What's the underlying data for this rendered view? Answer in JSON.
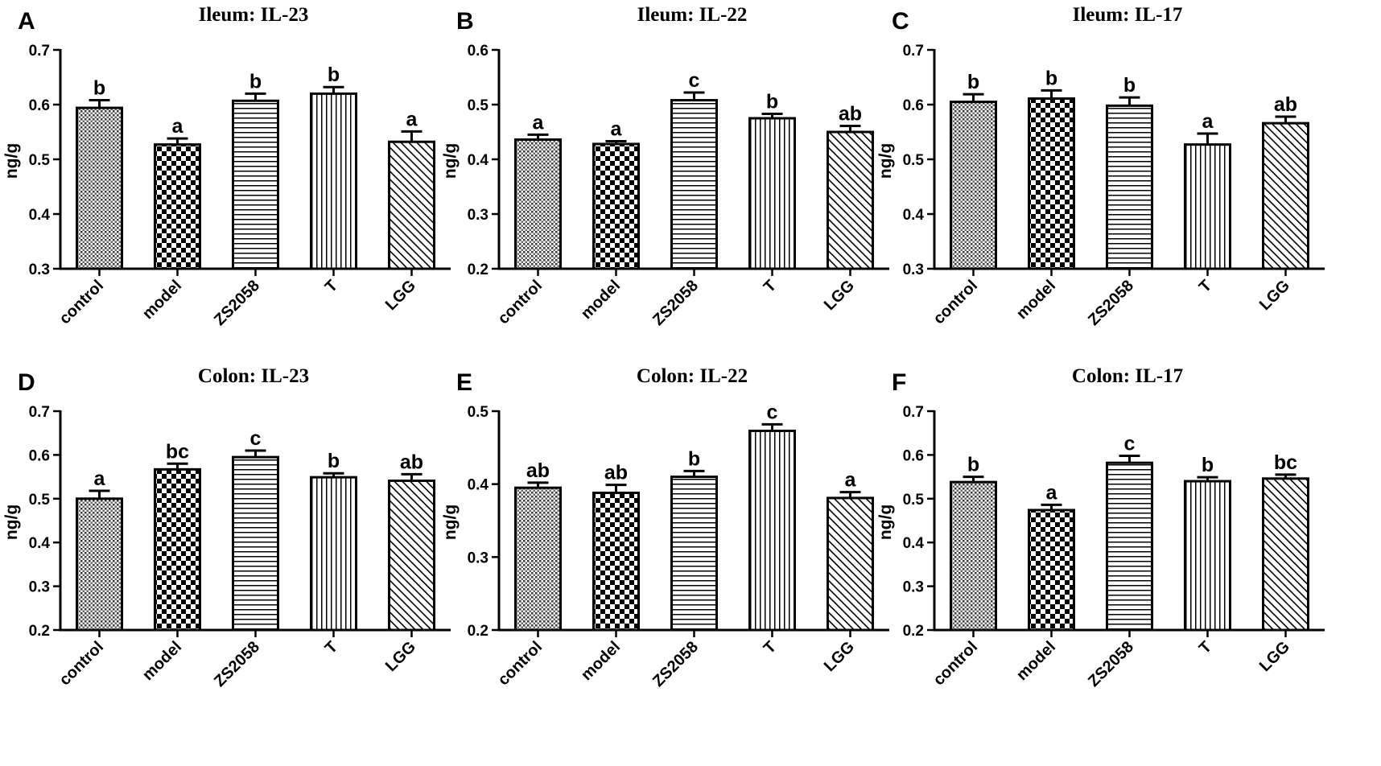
{
  "figure": {
    "categories": [
      "control",
      "model",
      "ZS2058",
      "T",
      "LGG"
    ],
    "patterns": [
      "fine-grid",
      "checker",
      "horizontal-lines",
      "vertical-lines",
      "diagonal-lines"
    ],
    "bar_color": "#000000"
  },
  "chart_data": [
    {
      "type": "bar",
      "letter": "A",
      "title": "Ileum: IL-23",
      "ylabel": "ng/g",
      "ylim": [
        0.3,
        0.7
      ],
      "yticks": [
        "0.3",
        "0.4",
        "0.5",
        "0.6",
        "0.7"
      ],
      "categories": [
        "control",
        "model",
        "ZS2058",
        "T",
        "LGG"
      ],
      "values": [
        0.594,
        0.527,
        0.607,
        0.62,
        0.532
      ],
      "errors": [
        0.014,
        0.011,
        0.013,
        0.012,
        0.019
      ],
      "labels": [
        "b",
        "a",
        "b",
        "b",
        "a"
      ]
    },
    {
      "type": "bar",
      "letter": "B",
      "title": "Ileum: IL-22",
      "ylabel": "ng/g",
      "ylim": [
        0.2,
        0.6
      ],
      "yticks": [
        "0.2",
        "0.3",
        "0.4",
        "0.5",
        "0.6"
      ],
      "categories": [
        "control",
        "model",
        "ZS2058",
        "T",
        "LGG"
      ],
      "values": [
        0.436,
        0.428,
        0.508,
        0.475,
        0.45
      ],
      "errors": [
        0.009,
        0.005,
        0.014,
        0.008,
        0.011
      ],
      "labels": [
        "a",
        "a",
        "c",
        "b",
        "ab"
      ]
    },
    {
      "type": "bar",
      "letter": "C",
      "title": "Ileum: IL-17",
      "ylabel": "ng/g",
      "ylim": [
        0.3,
        0.7
      ],
      "yticks": [
        "0.3",
        "0.4",
        "0.5",
        "0.6",
        "0.7"
      ],
      "categories": [
        "control",
        "model",
        "ZS2058",
        "T",
        "LGG"
      ],
      "values": [
        0.605,
        0.611,
        0.598,
        0.527,
        0.566
      ],
      "errors": [
        0.014,
        0.015,
        0.015,
        0.02,
        0.012
      ],
      "labels": [
        "b",
        "b",
        "b",
        "a",
        "ab"
      ]
    },
    {
      "type": "bar",
      "letter": "D",
      "title": "Colon: IL-23",
      "ylabel": "ng/g",
      "ylim": [
        0.2,
        0.7
      ],
      "yticks": [
        "0.2",
        "0.3",
        "0.4",
        "0.5",
        "0.6",
        "0.7"
      ],
      "categories": [
        "control",
        "model",
        "ZS2058",
        "T",
        "LGG"
      ],
      "values": [
        0.5,
        0.567,
        0.595,
        0.549,
        0.541
      ],
      "errors": [
        0.018,
        0.013,
        0.015,
        0.009,
        0.015
      ],
      "labels": [
        "a",
        "bc",
        "c",
        "b",
        "ab"
      ]
    },
    {
      "type": "bar",
      "letter": "E",
      "title": "Colon: IL-22",
      "ylabel": "ng/g",
      "ylim": [
        0.2,
        0.5
      ],
      "yticks": [
        "0.2",
        "0.3",
        "0.4",
        "0.5"
      ],
      "categories": [
        "control",
        "model",
        "ZS2058",
        "T",
        "LGG"
      ],
      "values": [
        0.395,
        0.388,
        0.41,
        0.473,
        0.381
      ],
      "errors": [
        0.007,
        0.011,
        0.008,
        0.009,
        0.008
      ],
      "labels": [
        "ab",
        "ab",
        "b",
        "c",
        "a"
      ]
    },
    {
      "type": "bar",
      "letter": "F",
      "title": "Colon: IL-17",
      "ylabel": "ng/g",
      "ylim": [
        0.2,
        0.7
      ],
      "yticks": [
        "0.2",
        "0.3",
        "0.4",
        "0.5",
        "0.6",
        "0.7"
      ],
      "categories": [
        "control",
        "model",
        "ZS2058",
        "T",
        "LGG"
      ],
      "values": [
        0.538,
        0.474,
        0.582,
        0.54,
        0.546
      ],
      "errors": [
        0.012,
        0.012,
        0.016,
        0.009,
        0.009
      ],
      "labels": [
        "b",
        "a",
        "c",
        "b",
        "bc"
      ]
    }
  ]
}
